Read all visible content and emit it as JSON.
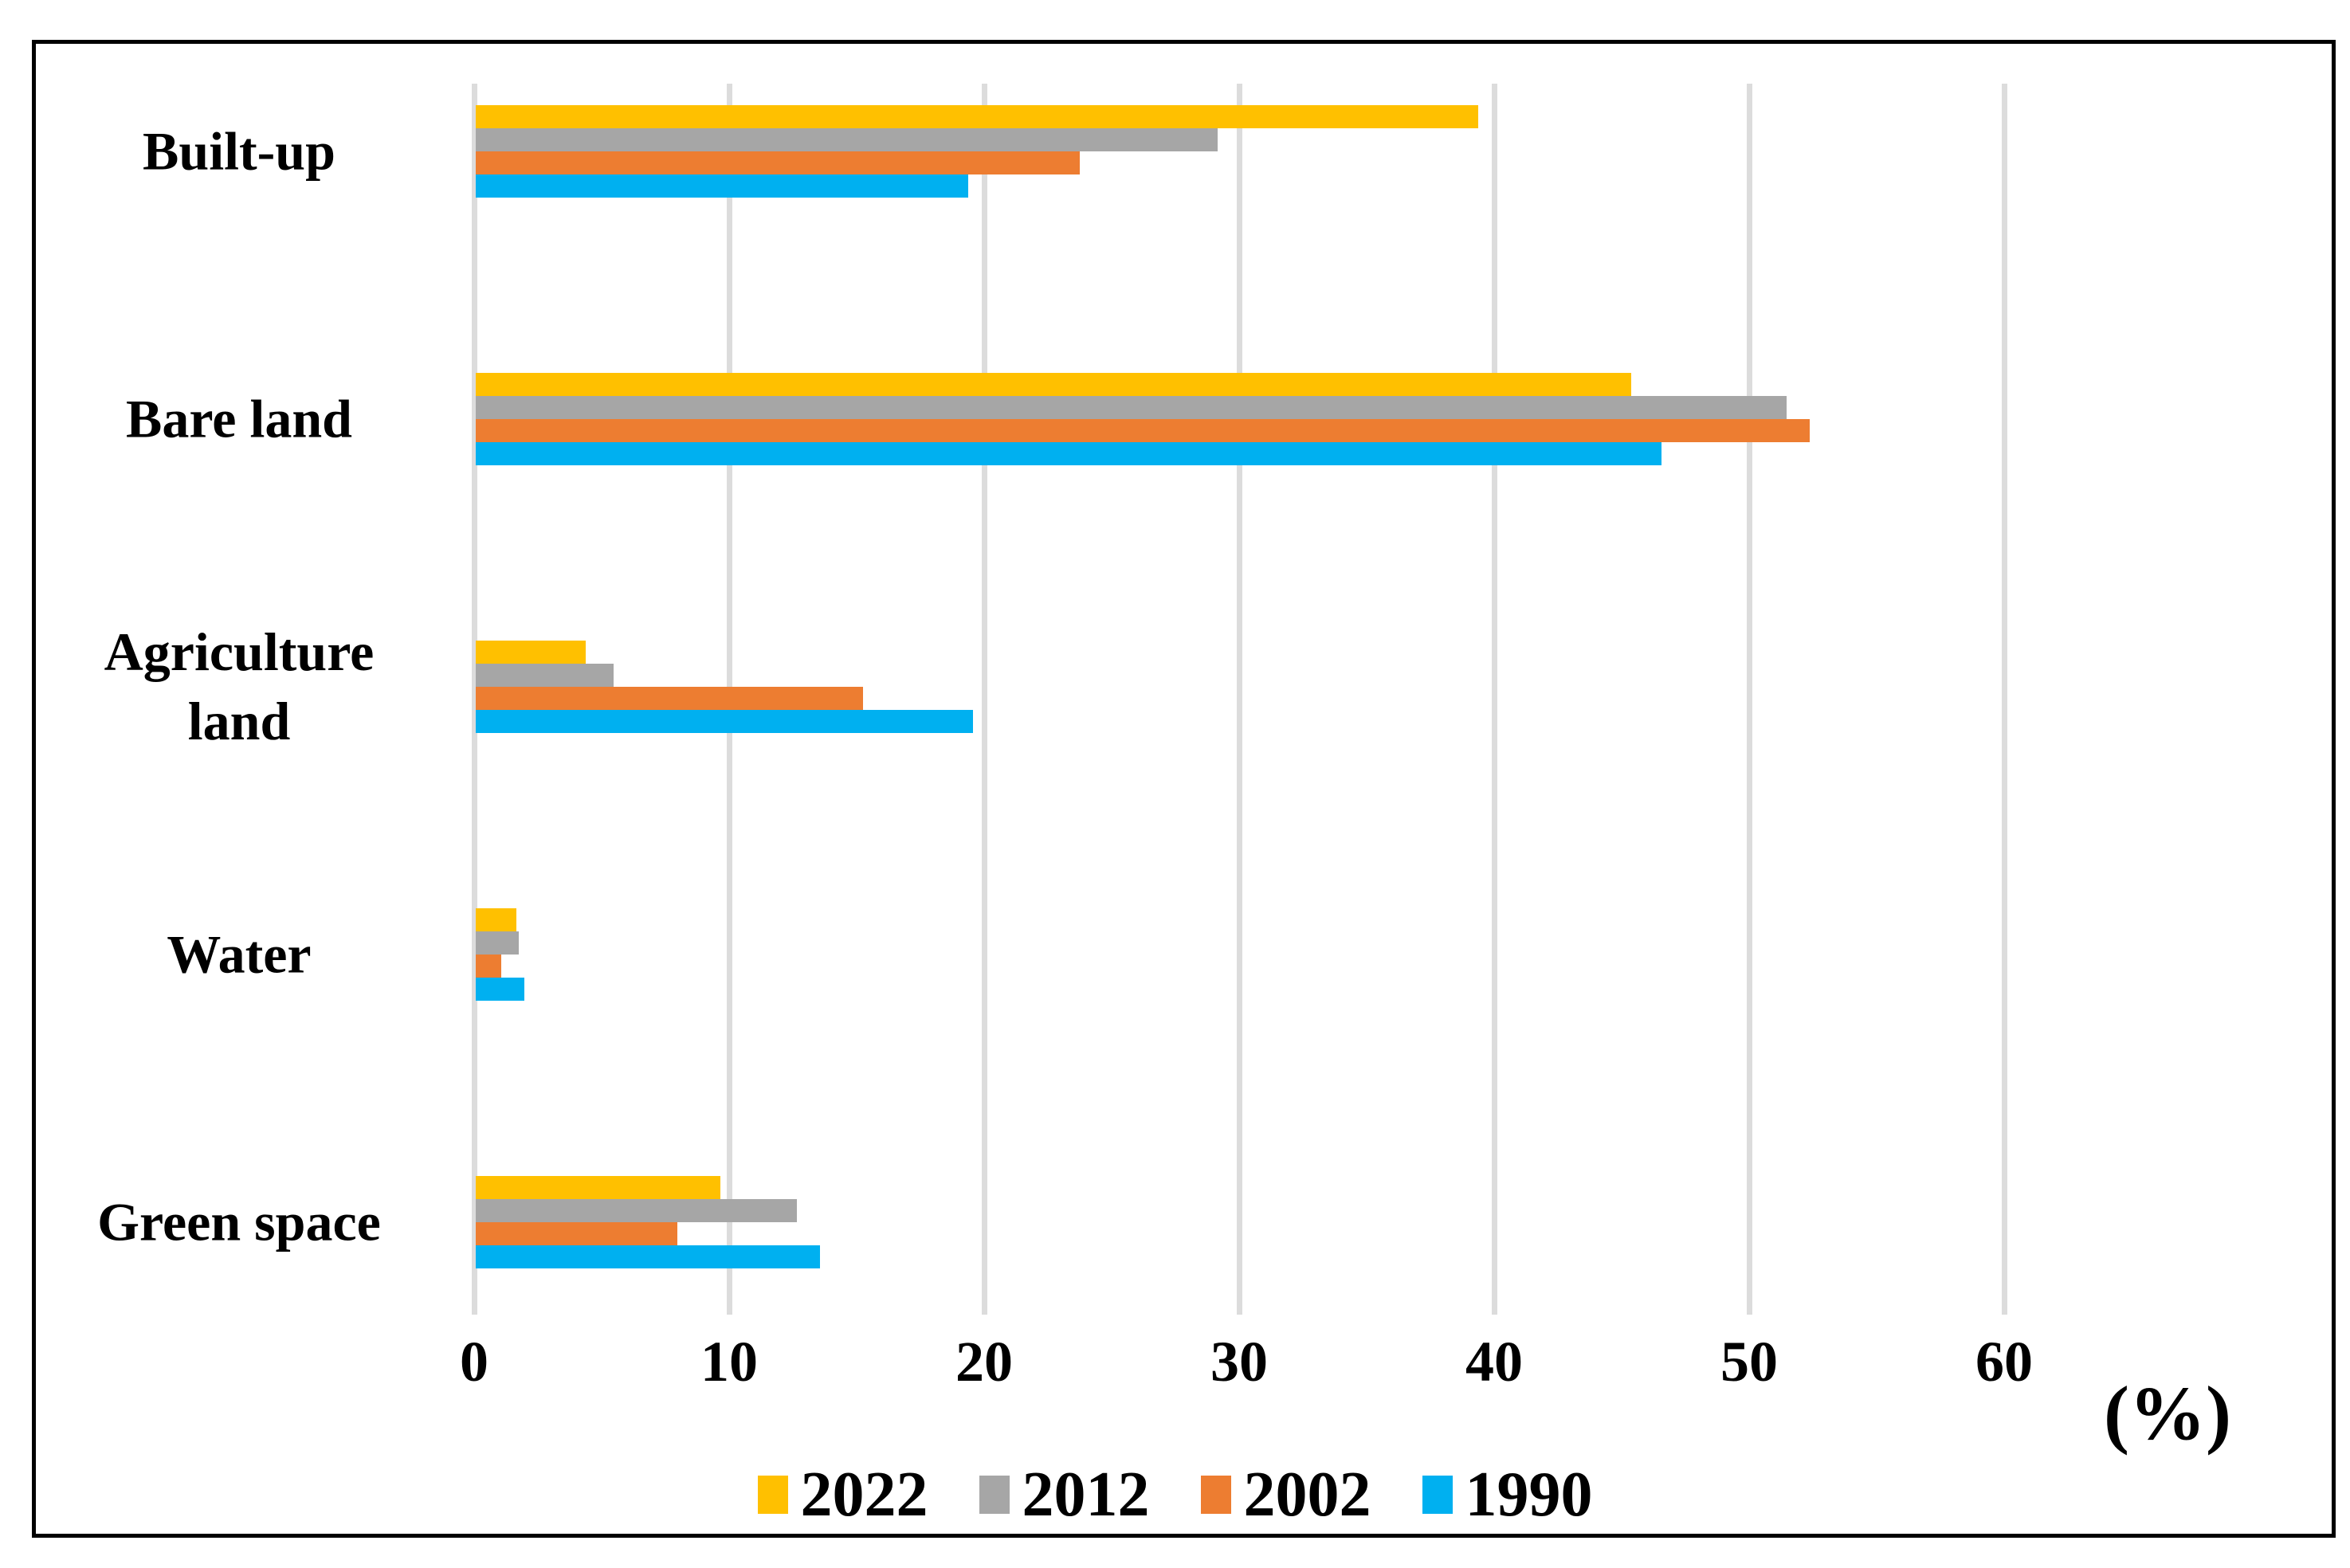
{
  "figure": {
    "background_color": "#FFFFFF",
    "frame_border_color": "#000000",
    "gridline_color": "#DCDCDC"
  },
  "chart_data": {
    "type": "bar",
    "orientation": "horizontal",
    "title": "",
    "categories": [
      "Built-up",
      "Bare land",
      "Agriculture land",
      "Water",
      "Green space"
    ],
    "series": [
      {
        "name": "2022",
        "color": "#FFC000",
        "values": [
          39.3,
          45.3,
          4.3,
          1.6,
          9.6
        ]
      },
      {
        "name": "2012",
        "color": "#A6A6A6",
        "values": [
          29.1,
          51.4,
          5.4,
          1.7,
          12.6
        ]
      },
      {
        "name": "2002",
        "color": "#ED7D31",
        "values": [
          23.7,
          52.3,
          15.2,
          1.0,
          7.9
        ]
      },
      {
        "name": "1990",
        "color": "#00B0F0",
        "values": [
          19.3,
          46.5,
          19.5,
          1.9,
          13.5
        ]
      }
    ],
    "x_axis": {
      "label": "(%)",
      "min": 0,
      "max": 60,
      "tick_step": 10,
      "ticks": [
        "0",
        "10",
        "20",
        "30",
        "40",
        "50",
        "60"
      ]
    },
    "gridlines": true,
    "legend_position": "bottom",
    "legend_items": [
      "2022",
      "2012",
      "2002",
      "1990"
    ]
  }
}
